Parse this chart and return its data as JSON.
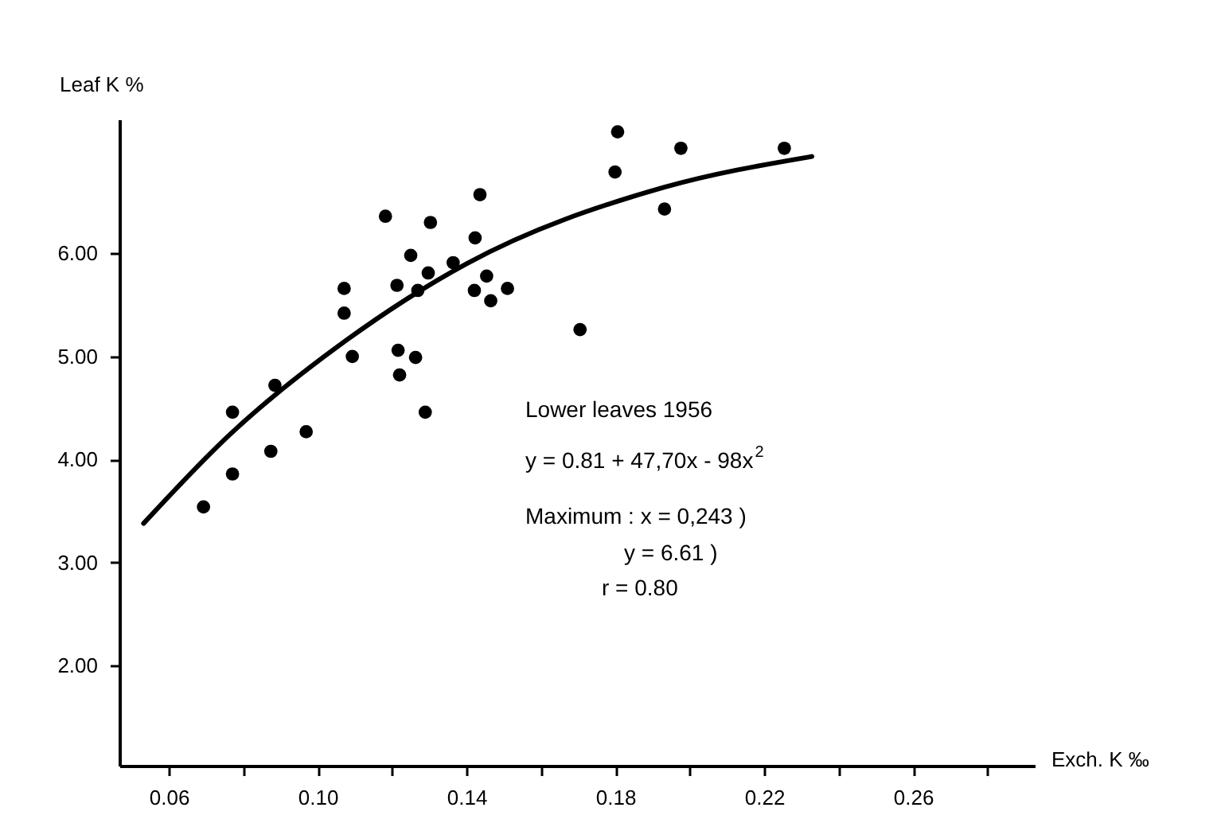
{
  "chart_data": {
    "type": "scatter",
    "xlabel": "Exch. K ‰",
    "ylabel": "Leaf K %",
    "xlim": [
      0.0467,
      0.2927
    ],
    "ylim": [
      1.03,
      7.3
    ],
    "xticks": [
      0.06,
      {
        "value": 0.08,
        "label": null
      },
      {
        "value": 0.1,
        "label": "0.10"
      },
      {
        "value": 0.12,
        "label": null
      },
      0.14,
      {
        "value": 0.16,
        "label": null
      },
      0.18,
      {
        "value": 0.2,
        "label": null
      },
      0.22,
      {
        "value": 0.24,
        "label": null
      },
      0.26,
      {
        "value": 0.28,
        "label": null
      }
    ],
    "yticks": [
      {
        "value": 2,
        "label": "2.00"
      },
      {
        "value": 3,
        "label": "3.00"
      },
      {
        "value": 4,
        "label": "4.00"
      },
      {
        "value": 5,
        "label": "5.00"
      },
      {
        "value": 6,
        "label": "6.00"
      }
    ],
    "series": [
      {
        "type": "line",
        "marker": "none",
        "color": "#000000",
        "x": [
          0.0532,
          0.076,
          0.1074,
          0.14,
          0.193,
          0.2328
        ],
        "values": [
          3.38,
          4.23,
          5.15,
          5.9,
          6.64,
          6.94
        ]
      },
      {
        "color": "#000000",
        "marker": "circle",
        "x": [
          0.0693,
          0.0771,
          0.0771,
          0.0874,
          0.0885,
          0.0969,
          0.1071,
          0.1071,
          0.1093,
          0.1182,
          0.1213,
          0.1216,
          0.122,
          0.1263,
          0.1289,
          0.125,
          0.1297,
          0.1303,
          0.1269,
          0.1364,
          0.1423,
          0.1436,
          0.1454,
          0.1421,
          0.1465,
          0.151,
          0.1705,
          0.1799,
          0.1806,
          0.1976,
          0.1932,
          0.2254
        ],
        "values": [
          3.54,
          3.86,
          4.46,
          4.08,
          4.72,
          4.27,
          5.66,
          5.42,
          5.0,
          6.36,
          5.69,
          5.06,
          4.82,
          4.99,
          4.46,
          5.98,
          5.81,
          6.3,
          5.64,
          5.91,
          6.15,
          6.57,
          5.78,
          5.64,
          5.54,
          5.66,
          5.26,
          6.79,
          7.18,
          7.02,
          6.43,
          7.02
        ]
      }
    ],
    "annotations": [
      "Lower leaves 1956",
      "y = 0.81 + 47,70x - 98x$^{2}$",
      "Maximum : x = 0,243 )",
      "y = 6.61   )",
      "r = 0.80"
    ]
  }
}
